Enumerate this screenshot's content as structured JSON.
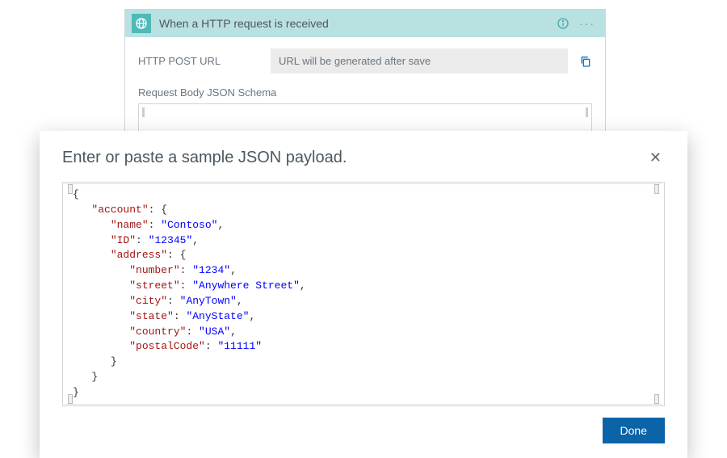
{
  "trigger": {
    "title": "When a HTTP request is received",
    "url_label": "HTTP POST URL",
    "url_placeholder": "URL will be generated after save",
    "schema_label": "Request Body JSON Schema"
  },
  "modal": {
    "title": "Enter or paste a sample JSON payload.",
    "done_label": "Done"
  },
  "colors": {
    "header_bg": "#b9e1e2",
    "header_icon_bg": "#4fb9b7",
    "accent_blue": "#0078d4",
    "done_btn_bg": "#0b63a8",
    "json_key": "#a31515",
    "json_string": "#0000ff",
    "text_muted": "#6a7680",
    "border": "#d0d6db"
  },
  "json_payload": {
    "lines": [
      {
        "indent": 0,
        "brace": "{"
      },
      {
        "indent": 1,
        "key": "account",
        "brace_open": true
      },
      {
        "indent": 2,
        "key": "name",
        "value": "Contoso",
        "comma": true
      },
      {
        "indent": 2,
        "key": "ID",
        "value": "12345",
        "comma": true
      },
      {
        "indent": 2,
        "key": "address",
        "brace_open": true
      },
      {
        "indent": 3,
        "key": "number",
        "value": "1234",
        "comma": true
      },
      {
        "indent": 3,
        "key": "street",
        "value": "Anywhere Street",
        "comma": true
      },
      {
        "indent": 3,
        "key": "city",
        "value": "AnyTown",
        "comma": true
      },
      {
        "indent": 3,
        "key": "state",
        "value": "AnyState",
        "comma": true
      },
      {
        "indent": 3,
        "key": "country",
        "value": "USA",
        "comma": true
      },
      {
        "indent": 3,
        "key": "postalCode",
        "value": "11111"
      },
      {
        "indent": 2,
        "brace": "}"
      },
      {
        "indent": 1,
        "brace": "}"
      },
      {
        "indent": 0,
        "brace": "}"
      }
    ],
    "indent_unit": "   "
  }
}
